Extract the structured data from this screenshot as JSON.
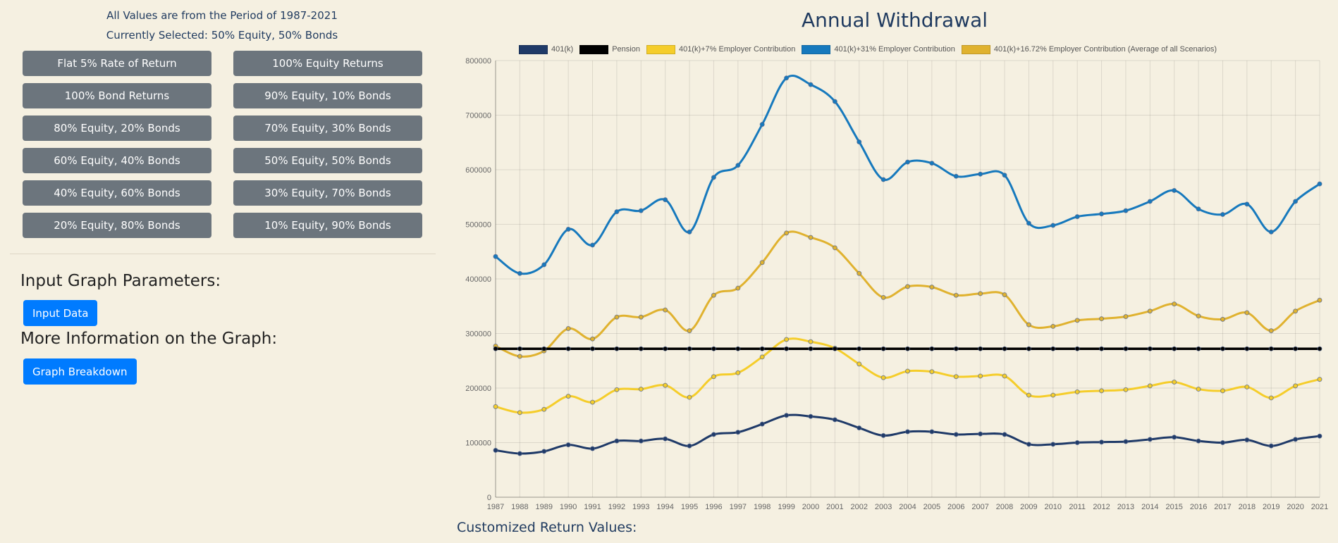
{
  "left_panel": {
    "period_text": "All Values are from the Period of 1987-2021",
    "selected_text": "Currently Selected: 50% Equity, 50% Bonds",
    "scenario_buttons": [
      "Flat 5% Rate of Return",
      "100% Equity Returns",
      "100% Bond Returns",
      "90% Equity, 10% Bonds",
      "80% Equity, 20% Bonds",
      "70% Equity, 30% Bonds",
      "60% Equity, 40% Bonds",
      "50% Equity, 50% Bonds",
      "40% Equity, 60% Bonds",
      "30% Equity, 70% Bonds",
      "20% Equity, 80% Bonds",
      "10% Equity, 90% Bonds"
    ],
    "input_heading": "Input Graph Parameters:",
    "input_button": "Input Data",
    "more_heading": "More Information on the Graph:",
    "breakdown_button": "Graph Breakdown"
  },
  "customized_heading": "Customized Return Values:",
  "chart_data": {
    "type": "line",
    "title": "Annual Withdrawal",
    "legend_position": "top",
    "grid": true,
    "ylim": [
      0,
      800000
    ],
    "yticks": [
      0,
      100000,
      200000,
      300000,
      400000,
      500000,
      600000,
      700000,
      800000
    ],
    "x": [
      "1987",
      "1988",
      "1989",
      "1990",
      "1991",
      "1992",
      "1993",
      "1994",
      "1995",
      "1996",
      "1997",
      "1998",
      "1999",
      "2000",
      "2001",
      "2002",
      "2003",
      "2004",
      "2005",
      "2006",
      "2007",
      "2008",
      "2009",
      "2010",
      "2011",
      "2012",
      "2013",
      "2014",
      "2015",
      "2016",
      "2017",
      "2018",
      "2019",
      "2020",
      "2021"
    ],
    "series": [
      {
        "name": "401(k)",
        "color": "#1f3a68",
        "values": [
          86000,
          80000,
          84000,
          96000,
          89000,
          103000,
          103000,
          107000,
          94000,
          115000,
          119000,
          134000,
          150000,
          148000,
          142000,
          127000,
          113000,
          120000,
          120000,
          115000,
          116000,
          115000,
          97000,
          97000,
          100000,
          101000,
          102000,
          106000,
          110000,
          103000,
          100000,
          105000,
          94000,
          106000,
          112000
        ]
      },
      {
        "name": "Pension",
        "color": "#000000",
        "values": [
          272000,
          272000,
          272000,
          272000,
          272000,
          272000,
          272000,
          272000,
          272000,
          272000,
          272000,
          272000,
          272000,
          272000,
          272000,
          272000,
          272000,
          272000,
          272000,
          272000,
          272000,
          272000,
          272000,
          272000,
          272000,
          272000,
          272000,
          272000,
          272000,
          272000,
          272000,
          272000,
          272000,
          272000,
          272000
        ]
      },
      {
        "name": "401(k)+7% Employer Contribution",
        "color": "#f5cd2a",
        "values": [
          166000,
          155000,
          161000,
          185000,
          174000,
          197000,
          198000,
          205000,
          183000,
          221000,
          228000,
          257000,
          289000,
          285000,
          273000,
          244000,
          219000,
          231000,
          230000,
          221000,
          222000,
          222000,
          187000,
          187000,
          193000,
          195000,
          197000,
          204000,
          211000,
          198000,
          195000,
          202000,
          182000,
          204000,
          216000
        ]
      },
      {
        "name": "401(k)+31% Employer Contribution",
        "color": "#1679bd",
        "values": [
          441000,
          410000,
          426000,
          491000,
          462000,
          523000,
          525000,
          545000,
          486000,
          586000,
          608000,
          683000,
          768000,
          756000,
          725000,
          651000,
          582000,
          614000,
          612000,
          588000,
          592000,
          590000,
          502000,
          498000,
          514000,
          519000,
          525000,
          542000,
          562000,
          528000,
          518000,
          537000,
          486000,
          542000,
          574000
        ]
      },
      {
        "name": "401(k)+16.72% Employer Contribution (Average of all Scenarios)",
        "color": "#e0b22f",
        "values": [
          277000,
          258000,
          268000,
          309000,
          290000,
          330000,
          330000,
          343000,
          305000,
          370000,
          383000,
          430000,
          484000,
          476000,
          457000,
          410000,
          366000,
          386000,
          385000,
          370000,
          373000,
          371000,
          316000,
          313000,
          324000,
          327000,
          331000,
          341000,
          354000,
          332000,
          326000,
          338000,
          305000,
          341000,
          361000
        ]
      }
    ]
  }
}
